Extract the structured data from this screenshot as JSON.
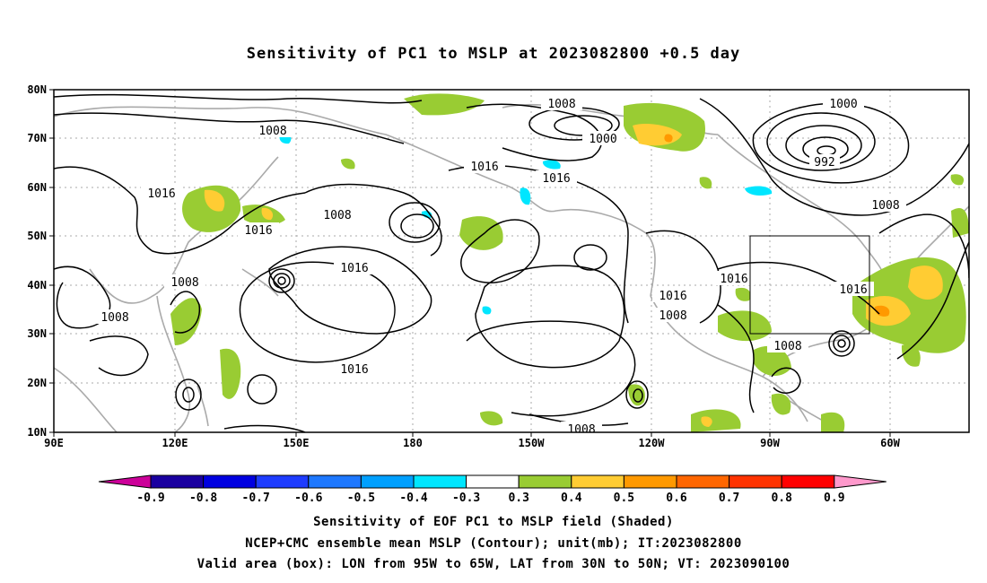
{
  "title": "Sensitivity of PC1 to MSLP at 2023082800 +0.5 day",
  "y_ticks": [
    "80N",
    "70N",
    "60N",
    "50N",
    "40N",
    "30N",
    "20N",
    "10N"
  ],
  "x_ticks": [
    "90E",
    "120E",
    "150E",
    "180",
    "150W",
    "120W",
    "90W",
    "60W"
  ],
  "contour_labels": {
    "c1": "1008",
    "c2": "1000",
    "c3": "1000",
    "c4": "992",
    "c5": "1008",
    "c6": "1016",
    "c7": "1016",
    "c8": "1016",
    "c9": "1008",
    "c10": "1016",
    "c11": "1008",
    "c12": "1016",
    "c13": "1016",
    "c14": "1008",
    "c15": "1008",
    "c16": "1016",
    "c17": "1016",
    "c18": "1008",
    "c19": "1008",
    "c20": "1008",
    "c21": "1016"
  },
  "colorbar": {
    "labels": [
      "-0.9",
      "-0.8",
      "-0.7",
      "-0.6",
      "-0.5",
      "-0.4",
      "-0.3",
      "0.3",
      "0.4",
      "0.5",
      "0.6",
      "0.7",
      "0.8",
      "0.9"
    ],
    "colors": [
      "#1a00a0",
      "#0000e0",
      "#1e3cff",
      "#1e78ff",
      "#00a0ff",
      "#00e6ff",
      "#ffffff",
      "#99cc33",
      "#ffcc33",
      "#ff9900",
      "#ff6600",
      "#ff3300",
      "#ff0000"
    ],
    "left_arrow_color": "#cc0099",
    "right_arrow_color": "#ff99cc"
  },
  "footer": {
    "line1": "Sensitivity of EOF PC1 to MSLP field (Shaded)",
    "line2": "NCEP+CMC ensemble mean MSLP (Contour); unit(mb); IT:2023082800",
    "line3": "Valid area (box): LON from 95W to 65W, LAT from 30N to 50N; VT: 2023090100"
  }
}
